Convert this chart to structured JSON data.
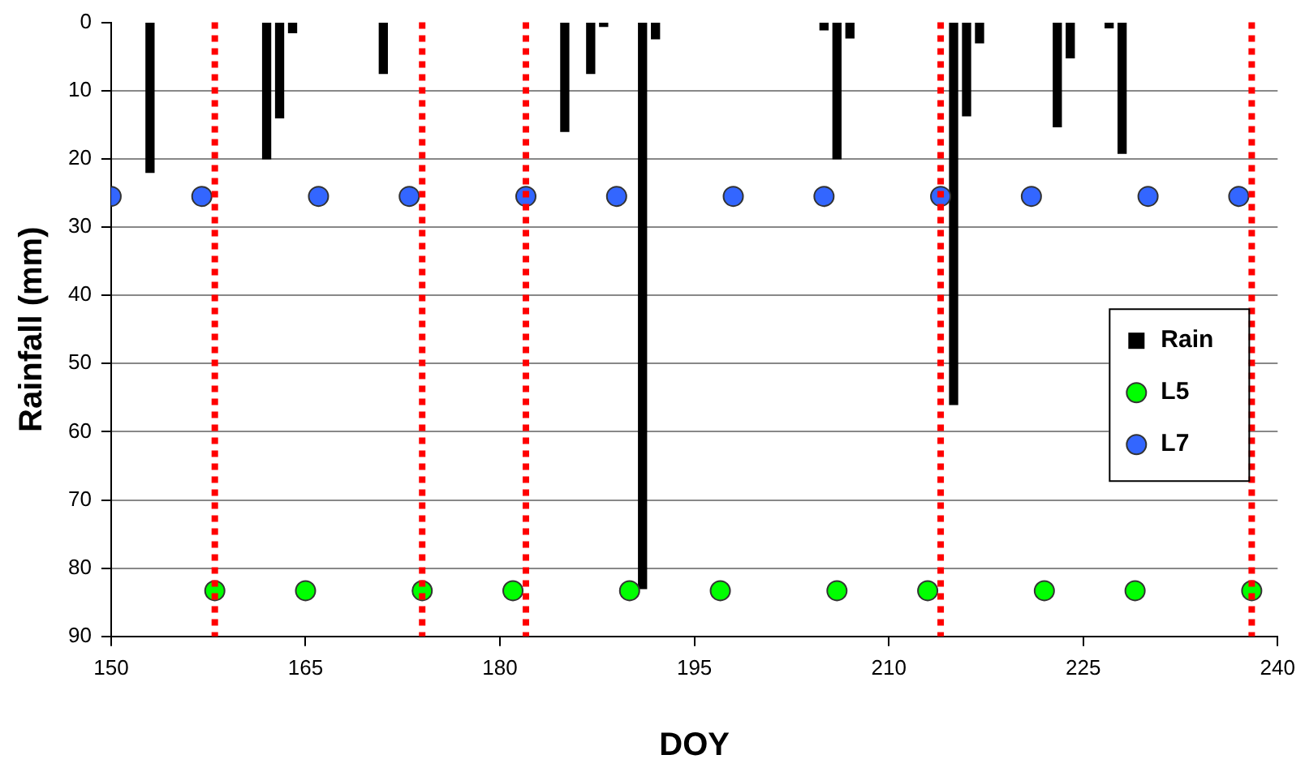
{
  "chart_data": {
    "type": "bar",
    "xlabel": "DOY",
    "ylabel": "Rainfall (mm)",
    "xlim": [
      150,
      240
    ],
    "xticks": [
      150,
      165,
      180,
      195,
      210,
      225,
      240
    ],
    "ylim": [
      90,
      0
    ],
    "yticks": [
      0,
      10,
      20,
      30,
      40,
      50,
      60,
      70,
      80,
      90
    ],
    "grid": "y",
    "legend": "right",
    "marker": "circle",
    "series": [
      {
        "name": "Rain",
        "color": "#000000",
        "x": [
          153,
          162,
          163,
          164,
          171,
          185,
          187,
          188,
          191,
          192,
          205,
          206,
          207,
          215,
          216,
          217,
          223,
          224,
          227,
          228
        ],
        "values": [
          22,
          20,
          14,
          1.5,
          7.5,
          16,
          7.5,
          0.6,
          83,
          2.4,
          1.1,
          20,
          2.3,
          56,
          13.7,
          3,
          15.3,
          5.2,
          0.8,
          19.2
        ]
      },
      {
        "name": "L5",
        "type": "scatter",
        "color": "#00ff00",
        "x": [
          158,
          165,
          174,
          181,
          190,
          197,
          206,
          213,
          222,
          229,
          238
        ],
        "values": [
          83.3,
          83.3,
          83.3,
          83.3,
          83.3,
          83.3,
          83.3,
          83.3,
          83.3,
          83.3,
          83.3
        ]
      },
      {
        "name": "L7",
        "type": "scatter",
        "color": "#3366ff",
        "x": [
          150,
          157,
          166,
          173,
          182,
          189,
          198,
          205,
          214,
          221,
          230,
          237
        ],
        "values": [
          25.5,
          25.5,
          25.5,
          25.5,
          25.5,
          25.5,
          25.5,
          25.5,
          25.5,
          25.5,
          25.5,
          25.5
        ]
      }
    ],
    "ref_lines": [
      {
        "axis": "x",
        "value": 158,
        "color": "#ff0000",
        "line_style": "dotted"
      },
      {
        "axis": "x",
        "value": 174,
        "color": "#ff0000",
        "line_style": "dotted"
      },
      {
        "axis": "x",
        "value": 182,
        "color": "#ff0000",
        "line_style": "dotted"
      },
      {
        "axis": "x",
        "value": 214,
        "color": "#ff0000",
        "line_style": "dotted"
      },
      {
        "axis": "x",
        "value": 238,
        "color": "#ff0000",
        "line_style": "dotted"
      }
    ]
  }
}
